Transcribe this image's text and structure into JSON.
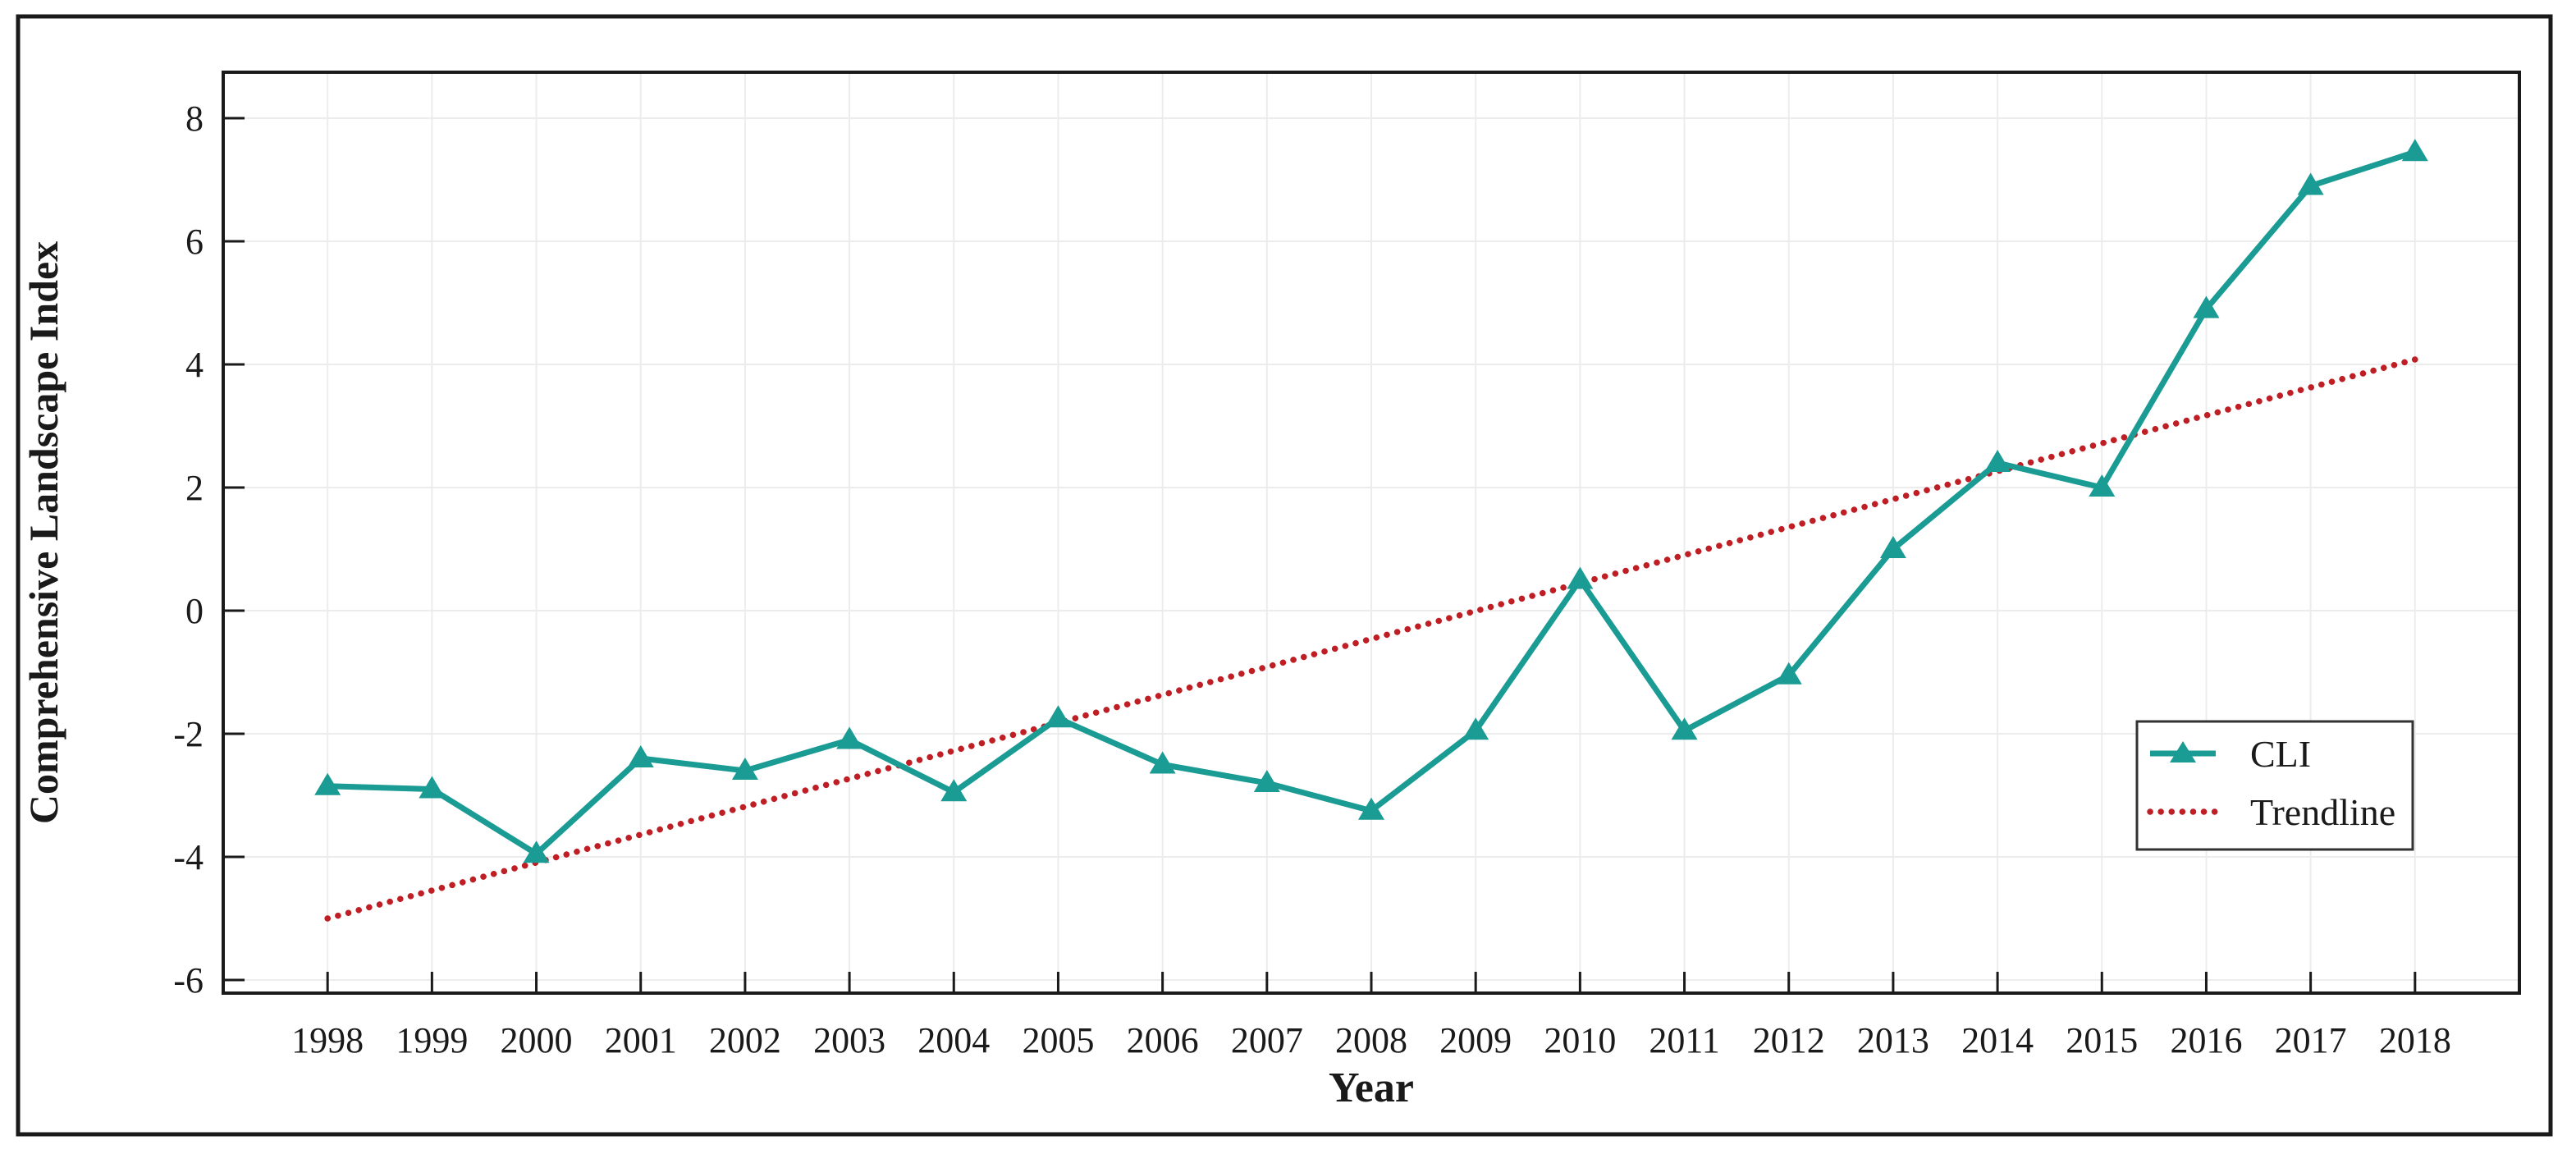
{
  "chart_data": {
    "type": "line",
    "title": "",
    "xlabel": "Year",
    "ylabel": "Comprehensive Landscape Index",
    "x": [
      1998,
      1999,
      2000,
      2001,
      2002,
      2003,
      2004,
      2005,
      2006,
      2007,
      2008,
      2009,
      2010,
      2011,
      2012,
      2013,
      2014,
      2015,
      2016,
      2017,
      2018
    ],
    "series": [
      {
        "name": "CLI",
        "values": [
          -2.85,
          -2.9,
          -3.95,
          -2.4,
          -2.6,
          -2.1,
          -2.95,
          -1.75,
          -2.5,
          -2.8,
          -3.25,
          -1.95,
          0.5,
          -1.95,
          -1.05,
          1.0,
          2.4,
          2.0,
          4.9,
          6.9,
          7.45
        ],
        "marker": "triangle-up"
      }
    ],
    "trendline": {
      "name": "Trendline",
      "x_start": 1998,
      "y_start": -5.0,
      "x_end": 2018,
      "y_end": 4.08,
      "style": "dotted"
    },
    "legend": [
      "CLI",
      "Trendline"
    ],
    "legend_position": "lower right",
    "grid": true,
    "ylim": [
      -6.2,
      8.75
    ],
    "xlim": [
      1997,
      2019
    ],
    "y_ticks": [
      8,
      6,
      4,
      2,
      0,
      -2,
      -4,
      -6
    ],
    "y_tick_labels": [
      "8",
      "6",
      "4",
      "2",
      "0",
      "-2",
      "-4",
      "-6"
    ],
    "x_tick_labels": [
      "1998",
      "1999",
      "2000",
      "2001",
      "2002",
      "2003",
      "2004",
      "2005",
      "2006",
      "2007",
      "2008",
      "2009",
      "2010",
      "2011",
      "2012",
      "2013",
      "2014",
      "2015",
      "2016",
      "2017",
      "2018"
    ],
    "colors": {
      "cli_line": "#1A9B94",
      "trendline": "#BE1E24",
      "gridline": "#ECECEC",
      "axis": "#1A1A1A",
      "background": "#FFFFFF"
    }
  }
}
